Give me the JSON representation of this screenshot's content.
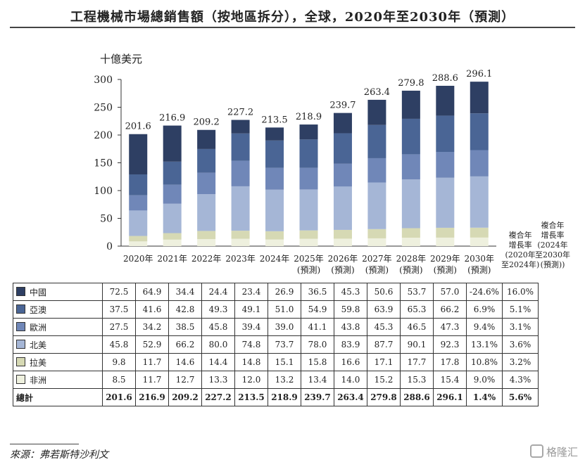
{
  "title": "工程機械市場總銷售額（按地區拆分），全球，2020年至2030年（預測）",
  "source": "來源：弗若斯特沙利文",
  "watermark": "格隆汇",
  "cagr_headers": [
    [
      "複合年",
      "增長率",
      "(2020年",
      "至2024年)"
    ],
    [
      "複合年",
      "增長率",
      "(2024年",
      "至2030年",
      "(預測))"
    ]
  ],
  "total_label": "總計",
  "chart_data": {
    "type": "bar",
    "stacked": true,
    "ylabel": "十億美元",
    "ylim": [
      0,
      300
    ],
    "yticks": [
      0,
      50,
      100,
      150,
      200,
      250,
      300
    ],
    "grid": false,
    "categories": [
      [
        "2020年"
      ],
      [
        "2021年"
      ],
      [
        "2022年"
      ],
      [
        "2023年"
      ],
      [
        "2024年"
      ],
      [
        "2025年",
        "(預測)"
      ],
      [
        "2026年",
        "(預測)"
      ],
      [
        "2027年",
        "(預測)"
      ],
      [
        "2028年",
        "(預測)"
      ],
      [
        "2029年",
        "(預測)"
      ],
      [
        "2030年",
        "(預測)"
      ]
    ],
    "totals": [
      "201.6",
      "216.9",
      "209.2",
      "227.2",
      "213.5",
      "218.9",
      "239.7",
      "263.4",
      "279.8",
      "288.6",
      "296.1"
    ],
    "totals_values": [
      201.6,
      216.9,
      209.2,
      227.2,
      213.5,
      218.9,
      239.7,
      263.4,
      279.8,
      288.6,
      296.1
    ],
    "total_cagr": [
      "1.4%",
      "5.6%"
    ],
    "series": [
      {
        "name": "中國",
        "color": "#2e3f63",
        "values": [
          72.5,
          64.9,
          34.4,
          24.4,
          23.4,
          26.9,
          36.5,
          45.3,
          50.6,
          53.7,
          57.0
        ],
        "cagr": [
          "-24.6%",
          "16.0%"
        ]
      },
      {
        "name": "亞澳",
        "color": "#4a6595",
        "values": [
          37.5,
          41.6,
          42.8,
          49.3,
          49.1,
          51.0,
          54.9,
          59.8,
          63.9,
          65.3,
          66.2
        ],
        "cagr": [
          "6.9%",
          "5.1%"
        ]
      },
      {
        "name": "歐洲",
        "color": "#7087b8",
        "values": [
          27.5,
          34.2,
          38.5,
          45.8,
          39.4,
          39.0,
          41.1,
          43.8,
          45.3,
          46.5,
          47.3
        ],
        "cagr": [
          "9.4%",
          "3.1%"
        ]
      },
      {
        "name": "北美",
        "color": "#a5b6d6",
        "values": [
          45.8,
          52.9,
          66.2,
          80.0,
          74.8,
          73.7,
          78.0,
          83.9,
          87.7,
          90.1,
          92.3
        ],
        "cagr": [
          "13.1%",
          "3.6%"
        ]
      },
      {
        "name": "拉美",
        "color": "#d6d9b4",
        "values": [
          9.8,
          11.7,
          14.6,
          14.4,
          14.8,
          15.1,
          15.8,
          16.6,
          17.1,
          17.7,
          17.8
        ],
        "cagr": [
          "10.8%",
          "3.2%"
        ]
      },
      {
        "name": "非洲",
        "color": "#eef0de",
        "values": [
          8.5,
          11.7,
          12.7,
          13.3,
          12.0,
          13.2,
          13.4,
          14.0,
          15.2,
          15.3,
          15.4
        ],
        "cagr": [
          "9.0%",
          "4.3%"
        ]
      }
    ]
  }
}
